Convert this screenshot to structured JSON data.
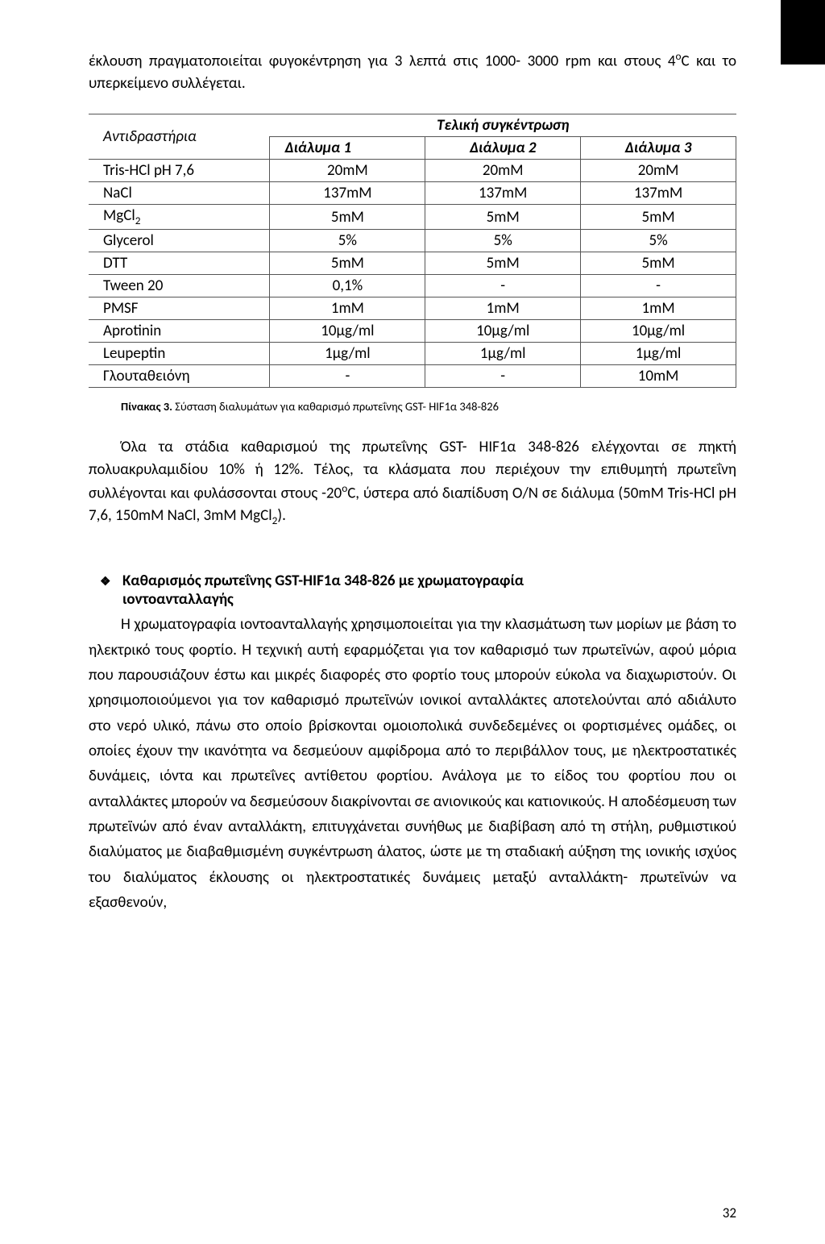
{
  "intro": {
    "text_a": "έκλουση πραγματοποιείται φυγοκέντρηση για 3 λεπτά στις 1000- 3000 rpm και στους 4",
    "text_b": "C και το υπερκείμενο συλλέγεται."
  },
  "table": {
    "header_reagent": "Αντιδραστήρια",
    "header_final": "Τελική συγκέντρωση",
    "header_d1": "Διάλυμα 1",
    "header_d2": "Διάλυμα 2",
    "header_d3": "Διάλυμα 3",
    "rows": [
      {
        "name": "Tris-HCl pH 7,6",
        "d1": "20mM",
        "d2": "20mM",
        "d3": "20mM"
      },
      {
        "name": "NaCl",
        "d1": "137mM",
        "d2": "137mM",
        "d3": "137mM"
      },
      {
        "name": "MgCl₂",
        "d1": "5mM",
        "d2": "5mM",
        "d3": "5mM"
      },
      {
        "name": "Glycerol",
        "d1": "5%",
        "d2": "5%",
        "d3": "5%"
      },
      {
        "name": "DTT",
        "d1": "5mM",
        "d2": "5mM",
        "d3": "5mM"
      },
      {
        "name": "Tween 20",
        "d1": "0,1%",
        "d2": "-",
        "d3": "-"
      },
      {
        "name": "PMSF",
        "d1": "1mM",
        "d2": "1mM",
        "d3": "1mM"
      },
      {
        "name": "Aprotinin",
        "d1": "10μg/ml",
        "d2": "10μg/ml",
        "d3": "10μg/ml"
      },
      {
        "name": "Leupeptin",
        "d1": "1μg/ml",
        "d2": "1μg/ml",
        "d3": "1μg/ml"
      },
      {
        "name": "Γλουταθειόνη",
        "d1": "-",
        "d2": "-",
        "d3": "10mM"
      }
    ]
  },
  "caption": {
    "prefix": "Πίνακας 3.",
    "text": " Σύσταση διαλυμάτων για καθαρισμό πρωτεΐνης GST- HIF1α 348-826"
  },
  "para2": {
    "a": "Όλα τα στάδια καθαρισμού της πρωτεΐνης GST- HIF1α 348-826 ελέγχονται σε πηκτή πολυακρυλαμιδίου 10% ή 12%. Τέλος, τα κλάσματα που περιέχουν την επιθυμητή πρωτεΐνη συλλέγονται και φυλάσσονται στους -20",
    "b": "C, ύστερα από διαπίδυση O/N σε διάλυμα (50mM Tris-HCl pH 7,6, 150mM NaCl, 3mM MgCl",
    "c": ")."
  },
  "section": {
    "title_line1": "Καθαρισμός   πρωτεΐνης   GST-HIF1α   348-826   με   χρωματογραφία",
    "title_line2": "ιοντοανταλλαγής",
    "body": "Η χρωματογραφία ιοντοανταλλαγής χρησιμοποιείται για την κλασμάτωση των μορίων με βάση το ηλεκτρικό τους φορτίο. Η τεχνική αυτή εφαρμόζεται για τον καθαρισμό των πρωτεϊνών, αφού μόρια που παρουσιάζουν έστω και μικρές διαφορές στο φορτίο τους μπορούν εύκολα να διαχωριστούν. Οι χρησιμοποιούμενοι για τον καθαρισμό πρωτεϊνών ιονικοί ανταλλάκτες αποτελούνται από αδιάλυτο στο νερό υλικό, πάνω στο οποίο βρίσκονται ομοιοπολικά συνδεδεμένες οι φορτισμένες ομάδες, οι οποίες έχουν την ικανότητα να δεσμεύουν αμφίδρομα από το περιβάλλον τους, με ηλεκτροστατικές δυνάμεις, ιόντα και πρωτεΐνες αντίθετου φορτίου. Ανάλογα με το είδος του φορτίου που οι ανταλλάκτες μπορούν να δεσμεύσουν διακρίνονται σε ανιονικούς και κατιονικούς. Η αποδέσμευση των πρωτεϊνών από έναν ανταλλάκτη, επιτυγχάνεται συνήθως με διαβίβαση από τη στήλη, ρυθμιστικού διαλύματος με διαβαθμισμένη συγκέντρωση άλατος, ώστε με τη σταδιακή αύξηση της ιονικής ισχύος του διαλύματος έκλουσης οι ηλεκτροστατικές δυνάμεις μεταξύ ανταλλάκτη- πρωτεϊνών να εξασθενούν,"
  },
  "page_number": "32"
}
